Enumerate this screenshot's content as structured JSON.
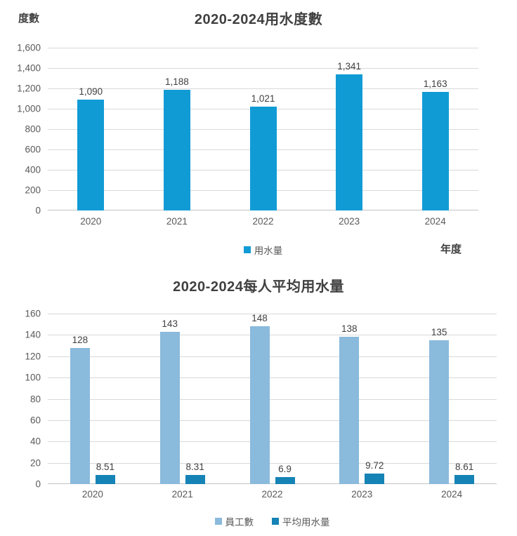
{
  "page": {
    "background": "#FFFFFF"
  },
  "chart_data": [
    {
      "type": "bar",
      "title": "2020-2024用水度數",
      "y_axis_title": "度數",
      "x_axis_title": "年度",
      "categories": [
        "2020",
        "2021",
        "2022",
        "2023",
        "2024"
      ],
      "series": [
        {
          "name": "用水量",
          "color": "#119BD5",
          "values": [
            1090,
            1188,
            1021,
            1341,
            1163
          ],
          "data_labels": [
            "1,090",
            "1,188",
            "1,021",
            "1,341",
            "1,163"
          ]
        }
      ],
      "ylim": [
        0,
        1600
      ],
      "ytick_step": 200,
      "ytick_labels": [
        "0",
        "200",
        "400",
        "600",
        "800",
        "1,000",
        "1,200",
        "1,400",
        "1,600"
      ],
      "grid": true,
      "legend_position": "bottom-center"
    },
    {
      "type": "bar",
      "title": "2020-2024每人平均用水量",
      "categories": [
        "2020",
        "2021",
        "2022",
        "2023",
        "2024"
      ],
      "series": [
        {
          "name": "員工數",
          "color": "#8ABADC",
          "values": [
            128,
            143,
            148,
            138,
            135
          ],
          "data_labels": [
            "128",
            "143",
            "148",
            "138",
            "135"
          ]
        },
        {
          "name": "平均用水量",
          "color": "#1583B5",
          "values": [
            8.51,
            8.31,
            6.9,
            9.72,
            8.61
          ],
          "data_labels": [
            "8.51",
            "8.31",
            "6.9",
            "9.72",
            "8.61"
          ]
        }
      ],
      "ylim": [
        0,
        160
      ],
      "ytick_step": 20,
      "ytick_labels": [
        "0",
        "20",
        "40",
        "60",
        "80",
        "100",
        "120",
        "140",
        "160"
      ],
      "grid": true,
      "legend_position": "bottom-center"
    }
  ],
  "colors": {
    "title_text": "#404040",
    "axis_title_text": "#404040",
    "tick_text": "#595959",
    "data_label_text": "#404040",
    "gridline": "#D9D9D9",
    "axis_line": "#C3C3C3"
  }
}
